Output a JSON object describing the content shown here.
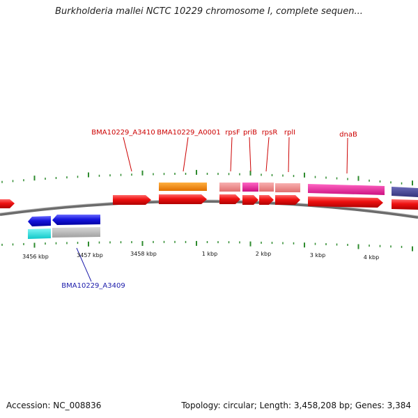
{
  "title": "Burkholderia mallei NCTC 10229 chromosome I, complete sequen...",
  "footer": {
    "accession": "Accession: NC_008836",
    "summary": "Topology: circular; Length: 3,458,208 bp; Genes: 3,384"
  },
  "colors": {
    "backbone": "#7a7a7a",
    "tick": "#2e8b2e",
    "forward_gene": "#ee1111",
    "reverse_gene": "#1515dd",
    "forward_label": "#cc0000",
    "reverse_label": "#1a1aaa",
    "trna": "#f08a8a",
    "rrna": "#ff8c00",
    "pink_feature": "#ee2299",
    "dark_feature": "#4a4a99",
    "cyan_feature": "#22e5e5",
    "grey_feature": "#b5b5b5"
  },
  "scale_labels": [
    "3456 kbp",
    "3457 kbp",
    "3458 kbp",
    "1 kbp",
    "2 kbp",
    "3 kbp",
    "4 kbp"
  ],
  "gene_labels": {
    "forward": [
      "BMA10229_A3410",
      "BMA10229_A0001",
      "rpsF",
      "priB",
      "rpsR",
      "rplI",
      "dnaB"
    ],
    "reverse": [
      "BMA10229_A3409"
    ]
  }
}
